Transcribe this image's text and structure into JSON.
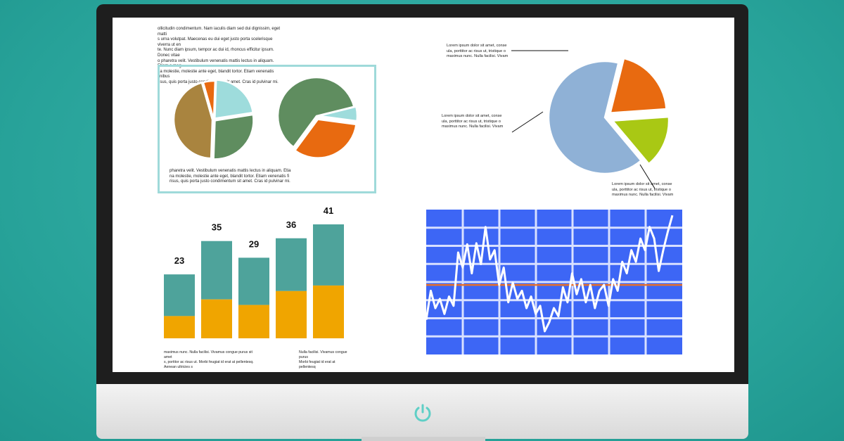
{
  "texts": {
    "top_left": "ollicitudin condimentum. Nam iaculis diam sed dui dignissim, eget matti\ns urna volutpat. Maecenas eu dui eget justo porta scelerisque viverra ut en\nte. Nunc diam ipsum, tempor ac dui id, rhoncus efficitur ipsum. Donec vitae\no pharetra velit. Vestibulum venenatis mattis lectus in aliquam. Etiam a mag\nna molestie, molestie ante eget, blandit tortor. Etiam venenatis finibus\nrisus, quis porta justo condimentum sit amet. Cras id pulvinar mi.",
    "frame_caption": "pharetra velit. Vestibulum venenatis mattis lectus in aliquam. Etia\nna molestie, molestie ante eget, blandit tortor. Etiam venenatis fi\nrisus, quis porta justo condimentum sit amet. Cras id pulvinar mi.",
    "pie_label_top": "Lorem ipsum dolor sit amet, conse\nula, porttitor ac risus ut, tristique o\nmaximus nunc. Nulla facilisi. Vivam",
    "pie_label_mid": "Lorem ipsum dolor sit amet, conse\nula, porttitor ac risus ut, tristique o\nmaximus nunc. Nulla facilisi. Vivam",
    "pie_label_bottom": "Lorem ipsum dolor sit amet, conse\nula, porttitor ac risus ut, tristique o\nmaximus nunc. Nulla facilisi. Vivam",
    "bar_caption_left": "maximus nunc. Nulla facilisi. Vivamus congue purus sit amet\ns, portitor ac risus ut. Morbi feugiat id erat at pellentesq. Aenean ultricies s",
    "bar_caption_right": "Nulla facilisi. Vivamus congue purus\nMorbi feugiat id erat at pellentesq"
  },
  "bar_chart": {
    "values": [
      23,
      35,
      29,
      36,
      41
    ],
    "lower_values": [
      8,
      14,
      12,
      17,
      19
    ],
    "labels": [
      "23",
      "35",
      "29",
      "36",
      "41"
    ],
    "colors": {
      "upper": "#4ea39b",
      "lower": "#f0a500"
    }
  },
  "line_chart": {
    "values": [
      30,
      55,
      40,
      48,
      35,
      50,
      42,
      88,
      75,
      95,
      70,
      96,
      78,
      110,
      82,
      90,
      60,
      75,
      45,
      62,
      48,
      55,
      40,
      50,
      35,
      42,
      20,
      28,
      40,
      33,
      58,
      45,
      70,
      52,
      65,
      45,
      60,
      40,
      55,
      60,
      42,
      65,
      55,
      80,
      70,
      90,
      80,
      100,
      90,
      110,
      100,
      72,
      90,
      106,
      120
    ],
    "baseline": 60,
    "colors": {
      "background": "#3d66f5",
      "grid": "#d8e0ff",
      "line": "#ffffff",
      "baseline": "#e8702a"
    }
  },
  "pies": {
    "small_left": {
      "values": [
        5,
        22,
        28,
        45
      ],
      "colors": [
        "#e86a10",
        "#9edcdc",
        "#5f8d5f",
        "#a9843f"
      ]
    },
    "small_right": {
      "values": [
        6,
        33,
        61
      ],
      "colors": [
        "#9edcdc",
        "#e86a10",
        "#5f8d5f"
      ]
    },
    "big": {
      "values": [
        20,
        15,
        65
      ],
      "colors": [
        "#e86a10",
        "#a9c814",
        "#8fb1d6"
      ]
    }
  },
  "colors": {
    "accent": "#5fcfc6",
    "frame_border": "#9fdada"
  },
  "icons": {
    "power": "power-icon"
  }
}
